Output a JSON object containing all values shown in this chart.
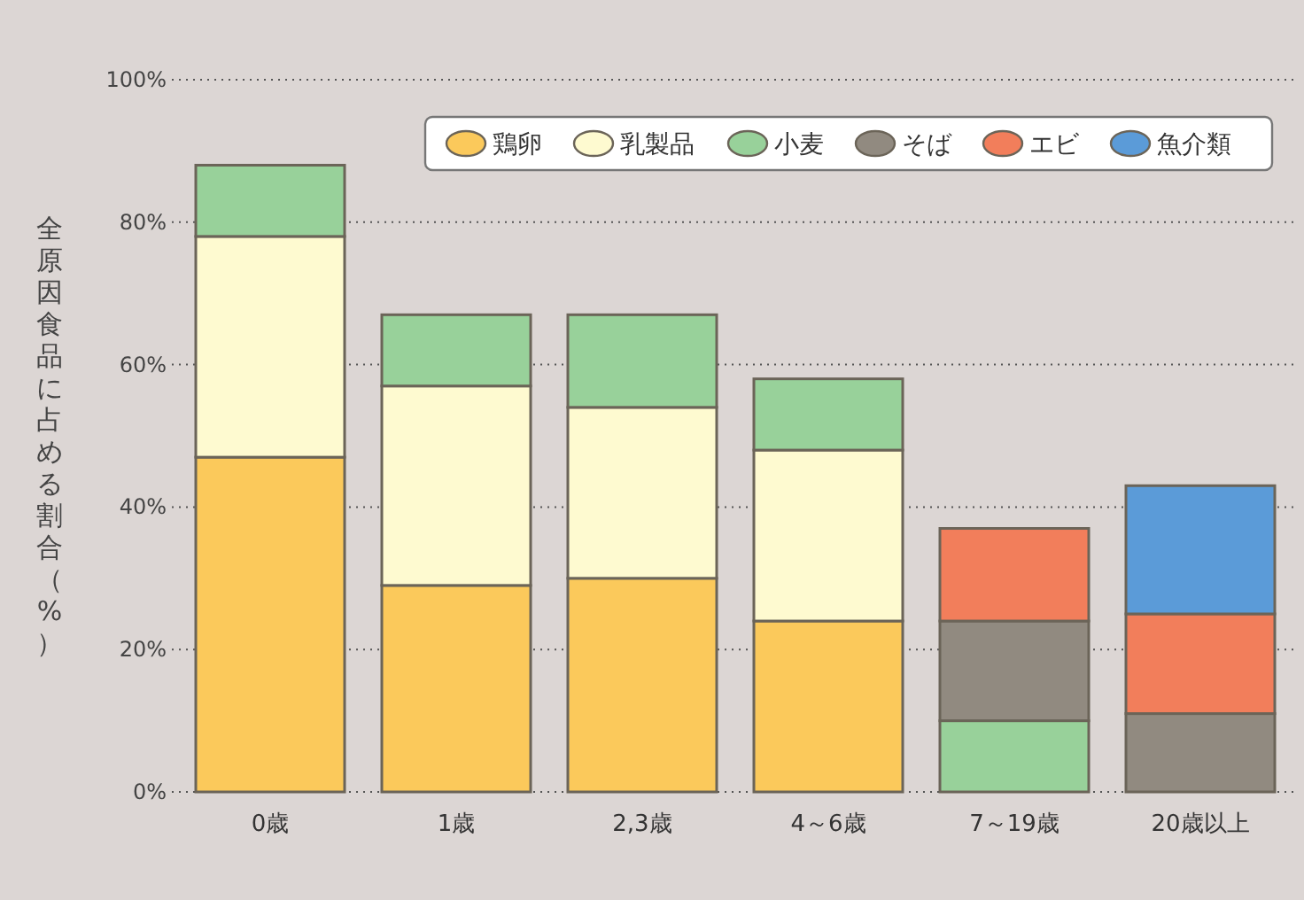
{
  "chart_data": {
    "type": "bar",
    "stacked": true,
    "ylabel": "全原因食品に占める割合（%）",
    "categories": [
      "0歳",
      "1歳",
      "2,3歳",
      "4～6歳",
      "7～19歳",
      "20歳以上"
    ],
    "series": [
      {
        "name": "鶏卵",
        "color": "#fbc95b",
        "values": [
          47,
          29,
          30,
          24,
          null,
          null
        ]
      },
      {
        "name": "乳製品",
        "color": "#fefad0",
        "values": [
          31,
          28,
          24,
          24,
          null,
          null
        ]
      },
      {
        "name": "小麦",
        "color": "#98d19a",
        "values": [
          10,
          10,
          13,
          10,
          10,
          null
        ]
      },
      {
        "name": "そば",
        "color": "#918a80",
        "values": [
          null,
          null,
          null,
          null,
          14,
          11
        ]
      },
      {
        "name": "エビ",
        "color": "#f27e5b",
        "values": [
          null,
          null,
          null,
          null,
          13,
          14
        ]
      },
      {
        "name": "魚介類",
        "color": "#5b9bd8",
        "values": [
          null,
          null,
          null,
          null,
          null,
          18
        ]
      }
    ],
    "ylim": [
      0,
      100
    ],
    "yticks": [
      {
        "value": 0,
        "label": "0%"
      },
      {
        "value": 20,
        "label": "20%"
      },
      {
        "value": 40,
        "label": "40%"
      },
      {
        "value": 60,
        "label": "60%"
      },
      {
        "value": 80,
        "label": "80%"
      },
      {
        "value": 100,
        "label": "100%"
      }
    ],
    "grid": "y",
    "legend": "top right"
  }
}
